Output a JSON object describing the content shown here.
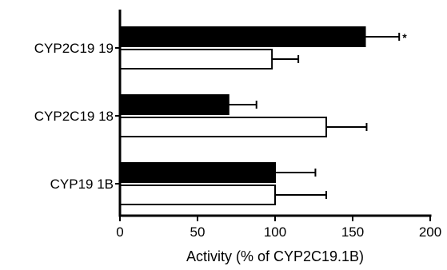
{
  "chart_data": {
    "type": "bar",
    "orientation": "horizontal",
    "categories": [
      "CYP2C19 19",
      "CYP2C19 18",
      "CYP19 1B"
    ],
    "series": [
      {
        "fill": "#000000",
        "values": [
          158,
          70,
          100
        ],
        "errors": [
          22,
          18,
          26
        ]
      },
      {
        "fill": "#ffffff",
        "values": [
          98,
          133,
          100
        ],
        "errors": [
          17,
          26,
          33
        ]
      }
    ],
    "annotations": [
      {
        "text": "*",
        "category_index": 0,
        "series_index": 0
      }
    ],
    "xlabel": "Activity (% of CYP2C19.1B)",
    "xlim": [
      0,
      200
    ],
    "xticks": [
      "0",
      "50",
      "100",
      "150",
      "200"
    ],
    "grid": false,
    "legend": "none"
  }
}
